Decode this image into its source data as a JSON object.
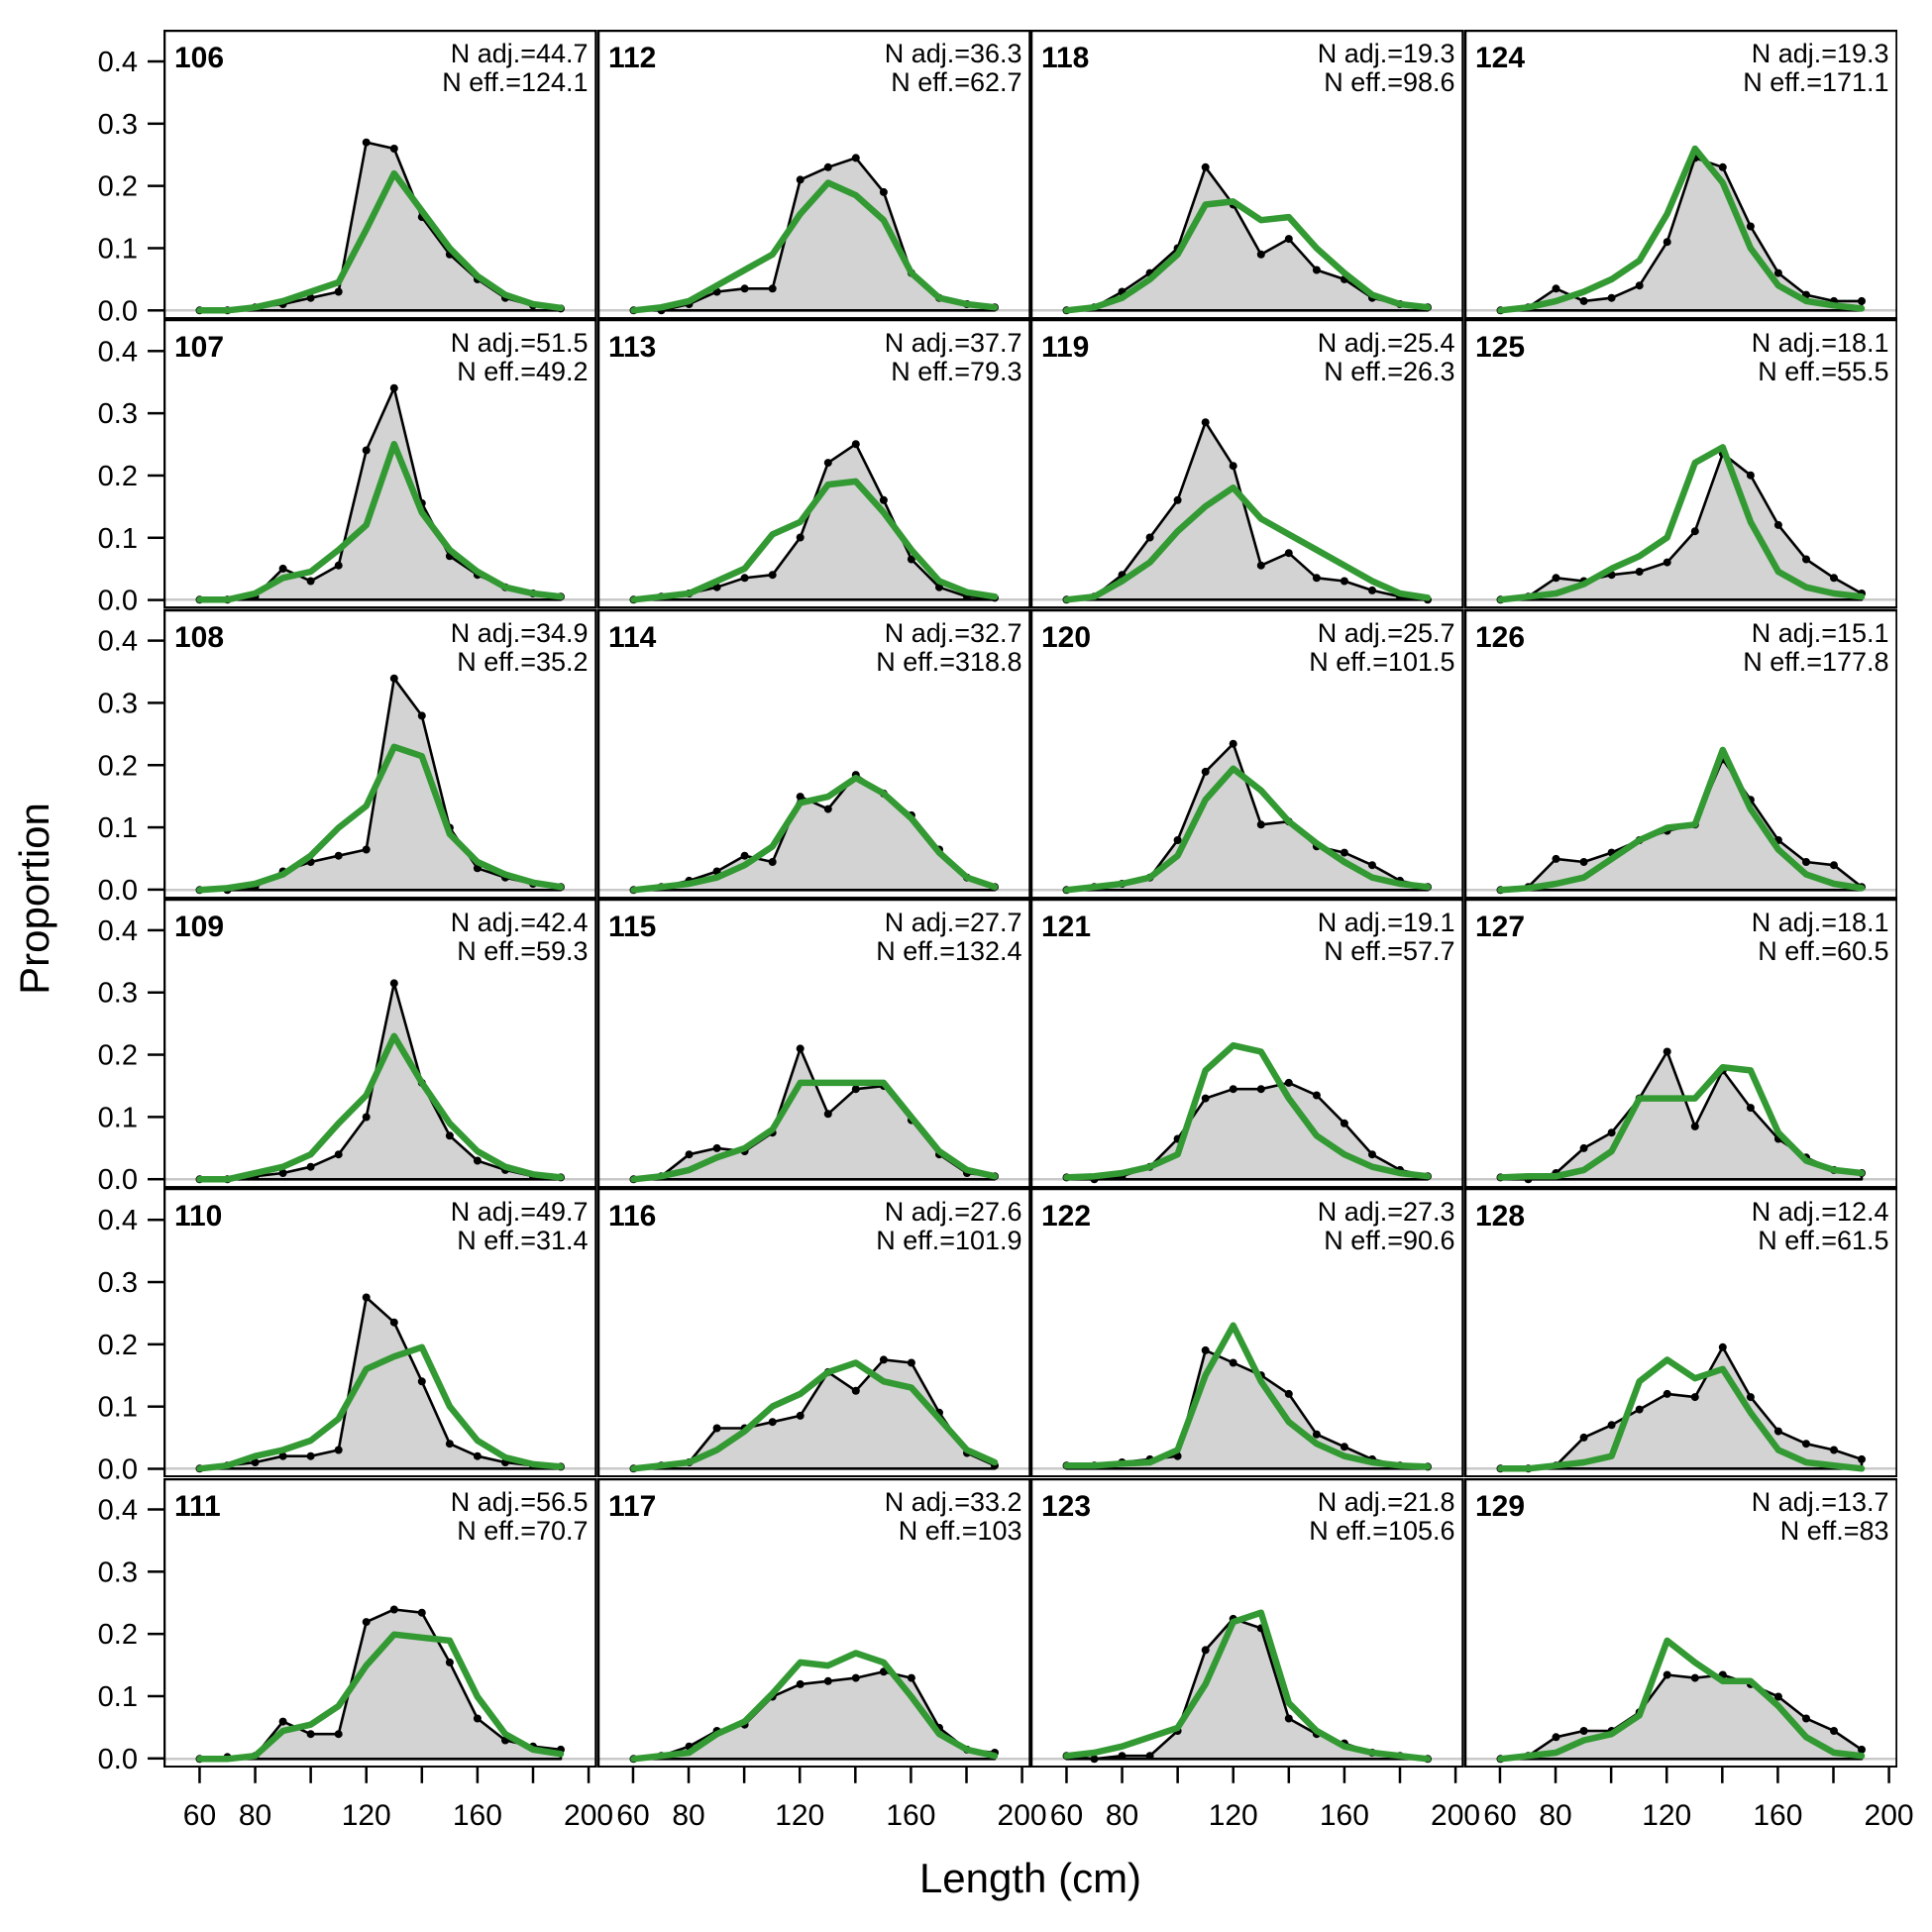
{
  "figure": {
    "xlabel": "Length (cm)",
    "ylabel": "Proportion",
    "annotation_prefixes": {
      "n_adj": "N adj.=",
      "n_eff": "N eff.="
    },
    "x_axis": {
      "ticks": [
        60,
        80,
        100,
        120,
        140,
        160,
        180,
        200
      ],
      "labeled_ticks": [
        60,
        80,
        120,
        160,
        200
      ],
      "range": [
        47,
        203
      ]
    },
    "y_axis": {
      "ticks": [
        0.0,
        0.1,
        0.2,
        0.3,
        0.4
      ],
      "tick_labels": [
        "0.0",
        "0.1",
        "0.2",
        "0.3",
        "0.4"
      ],
      "range": [
        0,
        0.43
      ]
    },
    "colors": {
      "observed_line": "#000000",
      "observed_fill": "#d3d3d3",
      "predicted_line": "#339933",
      "baseline": "#c9c9c9",
      "background": "#ffffff",
      "text": "#000000"
    }
  },
  "chart_data": {
    "type": "area",
    "layout": {
      "columns": 4,
      "rows": 6,
      "order": "column-major",
      "grid": "off",
      "legend": "none"
    },
    "x_values_cm": [
      60,
      70,
      80,
      90,
      100,
      110,
      120,
      130,
      140,
      150,
      160,
      170,
      180,
      190
    ],
    "panels": [
      {
        "label": "106",
        "n_adj": "44.7",
        "n_eff": "124.1",
        "observed": [
          0,
          0,
          0.005,
          0.01,
          0.02,
          0.03,
          0.27,
          0.26,
          0.15,
          0.09,
          0.05,
          0.02,
          0.008,
          0.003
        ],
        "predicted": [
          0,
          0,
          0.005,
          0.015,
          0.03,
          0.045,
          0.13,
          0.22,
          0.16,
          0.1,
          0.055,
          0.025,
          0.01,
          0.004
        ]
      },
      {
        "label": "107",
        "n_adj": "51.5",
        "n_eff": "49.2",
        "observed": [
          0,
          0,
          0.005,
          0.05,
          0.03,
          0.055,
          0.24,
          0.34,
          0.155,
          0.07,
          0.04,
          0.02,
          0.01,
          0.005
        ],
        "predicted": [
          0,
          0,
          0.01,
          0.035,
          0.045,
          0.08,
          0.12,
          0.25,
          0.14,
          0.08,
          0.045,
          0.02,
          0.01,
          0.005
        ]
      },
      {
        "label": "108",
        "n_adj": "34.9",
        "n_eff": "35.2",
        "observed": [
          0,
          0,
          0.005,
          0.03,
          0.045,
          0.055,
          0.065,
          0.34,
          0.28,
          0.1,
          0.035,
          0.02,
          0.01,
          0.005
        ],
        "predicted": [
          0,
          0.003,
          0.01,
          0.025,
          0.055,
          0.1,
          0.135,
          0.23,
          0.215,
          0.09,
          0.045,
          0.025,
          0.012,
          0.005
        ]
      },
      {
        "label": "109",
        "n_adj": "42.4",
        "n_eff": "59.3",
        "observed": [
          0,
          0,
          0.005,
          0.01,
          0.02,
          0.04,
          0.1,
          0.315,
          0.155,
          0.07,
          0.03,
          0.015,
          0.005,
          0.003
        ],
        "predicted": [
          0,
          0,
          0.01,
          0.02,
          0.04,
          0.09,
          0.135,
          0.23,
          0.155,
          0.09,
          0.045,
          0.02,
          0.008,
          0.003
        ]
      },
      {
        "label": "110",
        "n_adj": "49.7",
        "n_eff": "31.4",
        "observed": [
          0,
          0.005,
          0.01,
          0.02,
          0.02,
          0.03,
          0.275,
          0.235,
          0.14,
          0.04,
          0.02,
          0.01,
          0.005,
          0.003
        ],
        "predicted": [
          0,
          0.005,
          0.02,
          0.03,
          0.045,
          0.08,
          0.16,
          0.18,
          0.195,
          0.1,
          0.045,
          0.018,
          0.007,
          0.003
        ]
      },
      {
        "label": "111",
        "n_adj": "56.5",
        "n_eff": "70.7",
        "observed": [
          0,
          0.003,
          0.005,
          0.06,
          0.04,
          0.04,
          0.22,
          0.24,
          0.235,
          0.155,
          0.065,
          0.03,
          0.02,
          0.015
        ],
        "predicted": [
          0,
          0,
          0.005,
          0.045,
          0.055,
          0.085,
          0.15,
          0.2,
          0.195,
          0.19,
          0.1,
          0.04,
          0.015,
          0.008
        ]
      },
      {
        "label": "112",
        "n_adj": "36.3",
        "n_eff": "62.7",
        "observed": [
          0,
          0,
          0.01,
          0.03,
          0.035,
          0.035,
          0.21,
          0.23,
          0.245,
          0.19,
          0.06,
          0.02,
          0.01,
          0.005
        ],
        "predicted": [
          0,
          0.005,
          0.015,
          0.04,
          0.065,
          0.09,
          0.155,
          0.205,
          0.185,
          0.145,
          0.06,
          0.02,
          0.01,
          0.005
        ]
      },
      {
        "label": "113",
        "n_adj": "37.7",
        "n_eff": "79.3",
        "observed": [
          0,
          0.005,
          0.01,
          0.02,
          0.035,
          0.04,
          0.1,
          0.22,
          0.25,
          0.16,
          0.065,
          0.02,
          0.005,
          0.003
        ],
        "predicted": [
          0,
          0.005,
          0.01,
          0.03,
          0.05,
          0.105,
          0.125,
          0.185,
          0.19,
          0.14,
          0.08,
          0.03,
          0.012,
          0.005
        ]
      },
      {
        "label": "114",
        "n_adj": "32.7",
        "n_eff": "318.8",
        "observed": [
          0,
          0.005,
          0.015,
          0.03,
          0.055,
          0.045,
          0.15,
          0.13,
          0.185,
          0.155,
          0.12,
          0.065,
          0.02,
          0.005
        ],
        "predicted": [
          0,
          0.005,
          0.01,
          0.02,
          0.04,
          0.07,
          0.14,
          0.15,
          0.18,
          0.155,
          0.115,
          0.06,
          0.02,
          0.005
        ]
      },
      {
        "label": "115",
        "n_adj": "27.7",
        "n_eff": "132.4",
        "observed": [
          0,
          0.005,
          0.04,
          0.05,
          0.045,
          0.075,
          0.21,
          0.105,
          0.145,
          0.15,
          0.095,
          0.04,
          0.01,
          0.005
        ],
        "predicted": [
          0,
          0.005,
          0.015,
          0.035,
          0.05,
          0.08,
          0.155,
          0.155,
          0.155,
          0.155,
          0.1,
          0.045,
          0.015,
          0.005
        ]
      },
      {
        "label": "116",
        "n_adj": "27.6",
        "n_eff": "101.9",
        "observed": [
          0,
          0.005,
          0.01,
          0.065,
          0.065,
          0.075,
          0.085,
          0.155,
          0.125,
          0.175,
          0.17,
          0.09,
          0.025,
          0.005
        ],
        "predicted": [
          0,
          0.005,
          0.01,
          0.03,
          0.06,
          0.1,
          0.12,
          0.155,
          0.17,
          0.14,
          0.13,
          0.08,
          0.03,
          0.01
        ]
      },
      {
        "label": "117",
        "n_adj": "33.2",
        "n_eff": "103",
        "observed": [
          0,
          0.005,
          0.02,
          0.045,
          0.055,
          0.1,
          0.12,
          0.125,
          0.13,
          0.14,
          0.13,
          0.05,
          0.015,
          0.01
        ],
        "predicted": [
          0,
          0.005,
          0.01,
          0.04,
          0.06,
          0.105,
          0.155,
          0.15,
          0.17,
          0.155,
          0.1,
          0.04,
          0.015,
          0.005
        ]
      },
      {
        "label": "118",
        "n_adj": "19.3",
        "n_eff": "98.6",
        "observed": [
          0,
          0.005,
          0.03,
          0.06,
          0.1,
          0.23,
          0.17,
          0.09,
          0.115,
          0.065,
          0.05,
          0.02,
          0.01,
          0.005
        ],
        "predicted": [
          0,
          0.005,
          0.02,
          0.05,
          0.09,
          0.17,
          0.175,
          0.145,
          0.15,
          0.1,
          0.06,
          0.025,
          0.01,
          0.005
        ]
      },
      {
        "label": "119",
        "n_adj": "25.4",
        "n_eff": "26.3",
        "observed": [
          0,
          0.005,
          0.04,
          0.1,
          0.16,
          0.285,
          0.215,
          0.055,
          0.075,
          0.035,
          0.03,
          0.015,
          0.005,
          0
        ],
        "predicted": [
          0,
          0.005,
          0.03,
          0.06,
          0.11,
          0.15,
          0.18,
          0.13,
          0.105,
          0.08,
          0.055,
          0.03,
          0.01,
          0.003
        ]
      },
      {
        "label": "120",
        "n_adj": "25.7",
        "n_eff": "101.5",
        "observed": [
          0,
          0.005,
          0.01,
          0.02,
          0.08,
          0.19,
          0.235,
          0.105,
          0.11,
          0.07,
          0.06,
          0.04,
          0.015,
          0.005
        ],
        "predicted": [
          0,
          0.005,
          0.01,
          0.02,
          0.055,
          0.145,
          0.195,
          0.16,
          0.11,
          0.075,
          0.045,
          0.02,
          0.01,
          0.005
        ]
      },
      {
        "label": "121",
        "n_adj": "19.1",
        "n_eff": "57.7",
        "observed": [
          0.003,
          0,
          0.005,
          0.02,
          0.065,
          0.13,
          0.145,
          0.145,
          0.155,
          0.135,
          0.09,
          0.04,
          0.015,
          0.005
        ],
        "predicted": [
          0.003,
          0.005,
          0.01,
          0.02,
          0.04,
          0.175,
          0.215,
          0.205,
          0.13,
          0.07,
          0.04,
          0.02,
          0.01,
          0.005
        ]
      },
      {
        "label": "122",
        "n_adj": "27.3",
        "n_eff": "90.6",
        "observed": [
          0.005,
          0.005,
          0.01,
          0.015,
          0.02,
          0.19,
          0.17,
          0.15,
          0.12,
          0.055,
          0.035,
          0.015,
          0.005,
          0.003
        ],
        "predicted": [
          0.005,
          0.005,
          0.008,
          0.01,
          0.03,
          0.15,
          0.23,
          0.14,
          0.075,
          0.04,
          0.02,
          0.01,
          0.005,
          0.003
        ]
      },
      {
        "label": "123",
        "n_adj": "21.8",
        "n_eff": "105.6",
        "observed": [
          0.005,
          0,
          0.005,
          0.005,
          0.045,
          0.175,
          0.225,
          0.21,
          0.065,
          0.04,
          0.025,
          0.01,
          0.005,
          0
        ],
        "predicted": [
          0.005,
          0.01,
          0.02,
          0.035,
          0.05,
          0.12,
          0.22,
          0.235,
          0.09,
          0.045,
          0.02,
          0.01,
          0.005,
          0
        ]
      },
      {
        "label": "124",
        "n_adj": "19.3",
        "n_eff": "171.1",
        "observed": [
          0,
          0.005,
          0.035,
          0.015,
          0.02,
          0.04,
          0.11,
          0.245,
          0.23,
          0.135,
          0.06,
          0.025,
          0.015,
          0.015
        ],
        "predicted": [
          0,
          0.005,
          0.015,
          0.03,
          0.05,
          0.08,
          0.155,
          0.26,
          0.205,
          0.1,
          0.04,
          0.015,
          0.008,
          0.003
        ]
      },
      {
        "label": "125",
        "n_adj": "18.1",
        "n_eff": "55.5",
        "observed": [
          0,
          0.005,
          0.035,
          0.03,
          0.04,
          0.045,
          0.06,
          0.11,
          0.235,
          0.2,
          0.12,
          0.065,
          0.035,
          0.01
        ],
        "predicted": [
          0,
          0.005,
          0.01,
          0.025,
          0.05,
          0.07,
          0.1,
          0.22,
          0.245,
          0.125,
          0.045,
          0.02,
          0.01,
          0.005
        ]
      },
      {
        "label": "126",
        "n_adj": "15.1",
        "n_eff": "177.8",
        "observed": [
          0,
          0.005,
          0.05,
          0.045,
          0.06,
          0.08,
          0.095,
          0.105,
          0.21,
          0.145,
          0.08,
          0.045,
          0.04,
          0.005
        ],
        "predicted": [
          0,
          0.003,
          0.01,
          0.02,
          0.05,
          0.08,
          0.1,
          0.105,
          0.225,
          0.13,
          0.065,
          0.025,
          0.01,
          0.003
        ]
      },
      {
        "label": "127",
        "n_adj": "18.1",
        "n_eff": "60.5",
        "observed": [
          0.003,
          0,
          0.01,
          0.05,
          0.075,
          0.13,
          0.205,
          0.085,
          0.175,
          0.115,
          0.065,
          0.035,
          0.015,
          0.01
        ],
        "predicted": [
          0.003,
          0.005,
          0.005,
          0.015,
          0.045,
          0.13,
          0.13,
          0.13,
          0.18,
          0.175,
          0.075,
          0.03,
          0.015,
          0.01
        ]
      },
      {
        "label": "128",
        "n_adj": "12.4",
        "n_eff": "61.5",
        "observed": [
          0,
          0,
          0.005,
          0.05,
          0.07,
          0.095,
          0.12,
          0.115,
          0.195,
          0.115,
          0.06,
          0.04,
          0.03,
          0.015
        ],
        "predicted": [
          0,
          0,
          0.005,
          0.01,
          0.02,
          0.14,
          0.175,
          0.145,
          0.16,
          0.09,
          0.03,
          0.01,
          0.005,
          0
        ]
      },
      {
        "label": "129",
        "n_adj": "13.7",
        "n_eff": "83",
        "observed": [
          0,
          0.005,
          0.035,
          0.045,
          0.045,
          0.075,
          0.135,
          0.13,
          0.135,
          0.12,
          0.1,
          0.065,
          0.045,
          0.015
        ],
        "predicted": [
          0,
          0.005,
          0.01,
          0.03,
          0.04,
          0.07,
          0.19,
          0.155,
          0.125,
          0.125,
          0.085,
          0.035,
          0.01,
          0.005
        ]
      }
    ]
  }
}
